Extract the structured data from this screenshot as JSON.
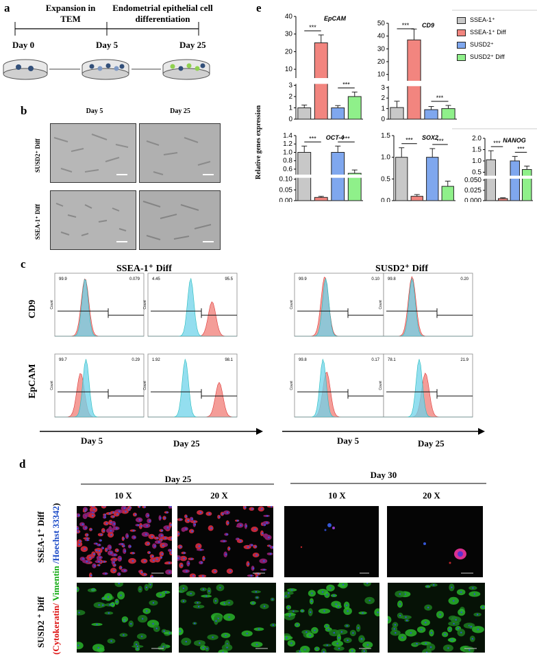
{
  "panels": {
    "a": "a",
    "b": "b",
    "c": "c",
    "d": "d",
    "e": "e"
  },
  "panel_a": {
    "stage1": "Expansion in TEM",
    "stage2": "Endometrial epithelial cell differentiation",
    "day0": "Day 0",
    "day5": "Day 5",
    "day25": "Day 25"
  },
  "panel_b": {
    "col1": "Day 5",
    "col2": "Day 25",
    "row1": "SUSD2⁺ Diff",
    "row2": "SSEA-1⁺ Diff"
  },
  "panel_c": {
    "group1": "SSEA-1⁺ Diff",
    "group2": "SUSD2⁺ Diff",
    "row1": "CD9",
    "row2": "EpCAM",
    "day5": "Day 5",
    "day25": "Day 25",
    "yaxis": "Count",
    "plots": [
      {
        "left": "99.9",
        "right": "0.079"
      },
      {
        "left": "4.45",
        "right": "95.5"
      },
      {
        "left": "99.9",
        "right": "0.10"
      },
      {
        "left": "99.8",
        "right": "0.20"
      },
      {
        "left": "99.7",
        "right": "0.29"
      },
      {
        "left": "1.92",
        "right": "98.1"
      },
      {
        "left": "99.8",
        "right": "0.17"
      },
      {
        "left": "78.1",
        "right": "21.9"
      }
    ]
  },
  "panel_d": {
    "day25": "Day 25",
    "day30": "Day 30",
    "mag1": "10 X",
    "mag2": "20 X",
    "mag3": "10 X",
    "mag4": "20 X",
    "row1": "SSEA-1⁺ Diff",
    "row2": "SUSD2 ⁺ Diff",
    "stain_red": "(Cytokeratin/ ",
    "stain_green": "Vimentin ",
    "stain_blue": "/Hoechst 33342",
    "stain_end": ")"
  },
  "panel_e": {
    "ylabel": "Relative genes expression",
    "legend": [
      {
        "label": "SSEA-1⁺",
        "color": "#c8c8c8"
      },
      {
        "label": "SSEA-1⁺ Diff",
        "color": "#f2857f"
      },
      {
        "label": "SUSD2⁺",
        "color": "#7fa7ee"
      },
      {
        "label": "SUSD2⁺ Diff",
        "color": "#8ff08a"
      }
    ],
    "sig": "***"
  },
  "chart_data": [
    {
      "type": "bar",
      "title": "EpCAM",
      "categories": [
        "SSEA-1⁺",
        "SSEA-1⁺ Diff",
        "SUSD2⁺",
        "SUSD2⁺ Diff"
      ],
      "values": [
        1.0,
        25,
        1.0,
        2.0
      ],
      "errors": [
        0.25,
        4.5,
        0.2,
        0.4
      ],
      "ylim": [
        0,
        40
      ],
      "yticks": [
        "0",
        "1",
        "2",
        "3",
        "10",
        "20",
        "30",
        "40"
      ]
    },
    {
      "type": "bar",
      "title": "CD9",
      "categories": [
        "SSEA-1⁺",
        "SSEA-1⁺ Diff",
        "SUSD2⁺",
        "SUSD2⁺ Diff"
      ],
      "values": [
        1.1,
        37,
        0.9,
        1.0
      ],
      "errors": [
        0.6,
        8.5,
        0.3,
        0.3
      ],
      "ylim": [
        0,
        50
      ],
      "yticks": [
        "0",
        "1",
        "2",
        "3",
        "10",
        "20",
        "30",
        "40",
        "50"
      ]
    },
    {
      "type": "bar",
      "title": "OCT-4",
      "categories": [
        "SSEA-1⁺",
        "SSEA-1⁺ Diff",
        "SUSD2⁺",
        "SUSD2⁺ Diff"
      ],
      "values": [
        1.0,
        0.015,
        1.0,
        0.5
      ],
      "errors": [
        0.15,
        0.005,
        0.15,
        0.08
      ],
      "ylim": [
        0,
        1.4
      ],
      "yticks": [
        "0.00",
        "0.05",
        "0.10",
        "0.6",
        "0.8",
        "1.0",
        "1.2",
        "1.4"
      ]
    },
    {
      "type": "bar",
      "title": "SOX2",
      "categories": [
        "SSEA-1⁺",
        "SSEA-1⁺ Diff",
        "SUSD2⁺",
        "SUSD2⁺ Diff"
      ],
      "values": [
        1.0,
        0.1,
        1.0,
        0.33
      ],
      "errors": [
        0.22,
        0.04,
        0.2,
        0.12
      ],
      "ylim": [
        0,
        1.5
      ],
      "yticks": [
        "0.0",
        "0.5",
        "1.0",
        "1.5"
      ]
    },
    {
      "type": "bar",
      "title": "NANOG",
      "categories": [
        "SSEA-1⁺",
        "SSEA-1⁺ Diff",
        "SUSD2⁺",
        "SUSD2⁺ Diff"
      ],
      "values": [
        1.05,
        0.005,
        1.0,
        0.62
      ],
      "errors": [
        0.4,
        0.002,
        0.2,
        0.15
      ],
      "ylim": [
        0,
        2.0
      ],
      "yticks": [
        "0.000",
        "0.025",
        "0.050",
        "0.5",
        "1.0",
        "1.5",
        "2.0"
      ]
    }
  ]
}
